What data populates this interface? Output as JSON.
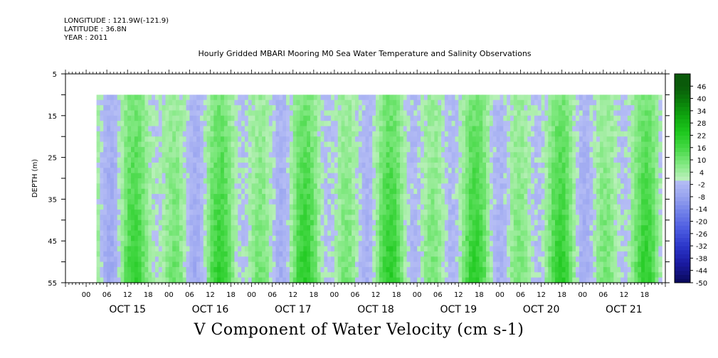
{
  "meta": {
    "longitude": "LONGITUDE : 121.9W(-121.9)",
    "latitude": "LATITUDE : 36.8N",
    "year": "YEAR : 2011"
  },
  "title": "Hourly Gridded MBARI Mooring M0 Sea Water Temperature and Salinity Observations",
  "bottom_title": "V Component of Water Velocity (cm s-1)",
  "chart_data": {
    "type": "heatmap",
    "title": "Hourly Gridded MBARI Mooring M0 Sea Water Temperature and Salinity Observations",
    "variable": "V Component of Water Velocity (cm s-1)",
    "ylabel": "DEPTH (m)",
    "ylim": [
      55,
      5
    ],
    "y_ticks": [
      5,
      15,
      25,
      35,
      45,
      55
    ],
    "x_hour_ticks": [
      "00",
      "06",
      "12",
      "18",
      "00",
      "06",
      "12",
      "18",
      "00",
      "06",
      "12",
      "18",
      "00",
      "06",
      "12",
      "18",
      "00",
      "06",
      "12",
      "18",
      "00",
      "06",
      "12",
      "18",
      "00",
      "06",
      "12",
      "18"
    ],
    "x_day_labels": [
      "OCT 15",
      "OCT 16",
      "OCT 17",
      "OCT 18",
      "OCT 19",
      "OCT 20",
      "OCT 21"
    ],
    "x_range_days": [
      "OCT 14 18:00",
      "OCT 21 23:00"
    ],
    "data_start": "OCT 15 03:00",
    "data_depth_range": [
      10,
      55
    ],
    "colorbar_ticks": [
      46,
      40,
      34,
      28,
      22,
      16,
      10,
      4,
      -2,
      -8,
      -14,
      -20,
      -26,
      -32,
      -38,
      -44,
      -50
    ],
    "colorbar_range": [
      -50,
      52
    ],
    "colormap": {
      "negative": [
        "#0a0a60",
        "#1a1aa0",
        "#2a35c8",
        "#4b5ae0",
        "#6f7fe8",
        "#9aa5f0",
        "#b8c0f5"
      ],
      "positive": [
        "#b8f0b8",
        "#7ee87e",
        "#44d844",
        "#1ec81e",
        "#10a810",
        "#0a800a",
        "#0a5a0a"
      ]
    },
    "pattern_summary": "Alternating tidal bands of green (positive, up to ~20) and blue (negative, down to ~-15) with stronger green at depth 30-55 m"
  }
}
